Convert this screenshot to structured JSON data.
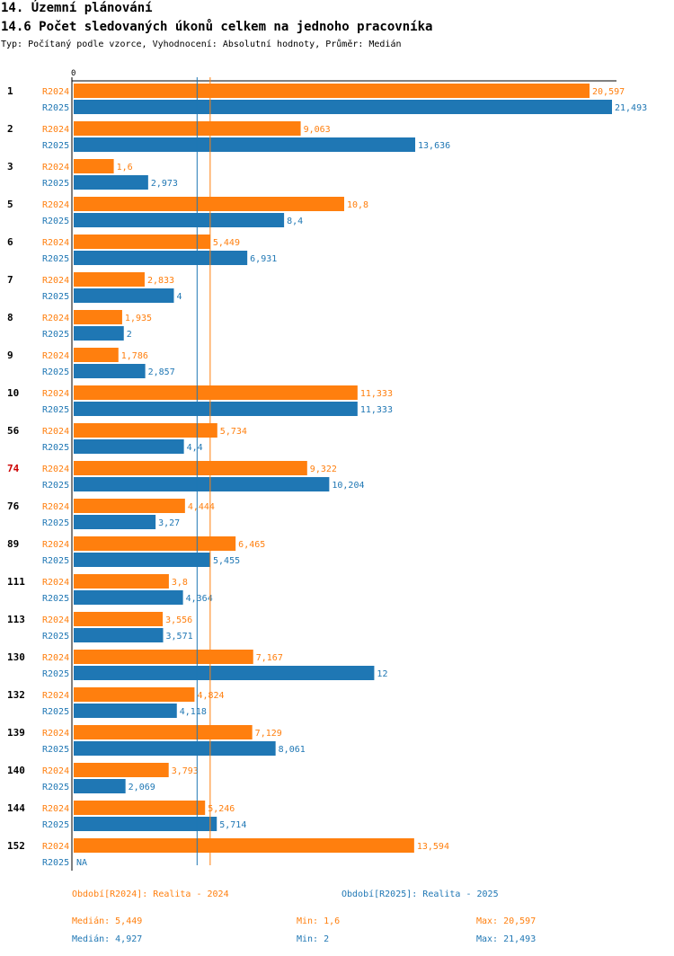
{
  "title": "14. Územní plánování",
  "subtitle": "14.6 Počet sledovaných úkonů celkem na jednoho pracovníka",
  "description": "Typ: Počítaný podle vzorce, Vyhodnocení: Absolutní hodnoty, Průměr: Medián",
  "colors": {
    "r2024": "#ff7f0e",
    "r2025": "#1f77b4",
    "highlight": "#cc0000"
  },
  "chart_data": {
    "type": "bar",
    "orientation": "horizontal",
    "axis_zero_label": "0",
    "xlim": [
      0,
      21.493
    ],
    "highlight_category": "74",
    "categories": [
      "1",
      "2",
      "3",
      "5",
      "6",
      "7",
      "8",
      "9",
      "10",
      "56",
      "74",
      "76",
      "89",
      "111",
      "113",
      "130",
      "132",
      "139",
      "140",
      "144",
      "152"
    ],
    "series": [
      {
        "name": "R2024",
        "values": [
          20.597,
          9.063,
          1.6,
          10.8,
          5.449,
          2.833,
          1.935,
          1.786,
          11.333,
          5.734,
          9.322,
          4.444,
          6.465,
          3.8,
          3.556,
          7.167,
          4.824,
          7.129,
          3.793,
          5.246,
          13.594
        ],
        "labels": [
          "20,597",
          "9,063",
          "1,6",
          "10,8",
          "5,449",
          "2,833",
          "1,935",
          "1,786",
          "11,333",
          "5,734",
          "9,322",
          "4,444",
          "6,465",
          "3,8",
          "3,556",
          "7,167",
          "4,824",
          "7,129",
          "3,793",
          "5,246",
          "13,594"
        ]
      },
      {
        "name": "R2025",
        "values": [
          21.493,
          13.636,
          2.973,
          8.4,
          6.931,
          4,
          2,
          2.857,
          11.333,
          4.4,
          10.204,
          3.27,
          5.455,
          4.364,
          3.571,
          12,
          4.118,
          8.061,
          2.069,
          5.714,
          null
        ],
        "labels": [
          "21,493",
          "13,636",
          "2,973",
          "8,4",
          "6,931",
          "4",
          "2",
          "2,857",
          "11,333",
          "4,4",
          "10,204",
          "3,27",
          "5,455",
          "4,364",
          "3,571",
          "12",
          "4,118",
          "8,061",
          "2,069",
          "5,714",
          "NA"
        ]
      }
    ],
    "medians": {
      "R2024": 5.449,
      "R2025": 4.927
    }
  },
  "footer": {
    "legend_2024": "Období[R2024]: Realita - 2024",
    "legend_2025": "Období[R2025]: Realita - 2025",
    "median_2024": "Medián: 5,449",
    "min_2024": "Min: 1,6",
    "max_2024": "Max: 20,597",
    "median_2025": "Medián: 4,927",
    "min_2025": "Min: 2",
    "max_2025": "Max: 21,493"
  }
}
